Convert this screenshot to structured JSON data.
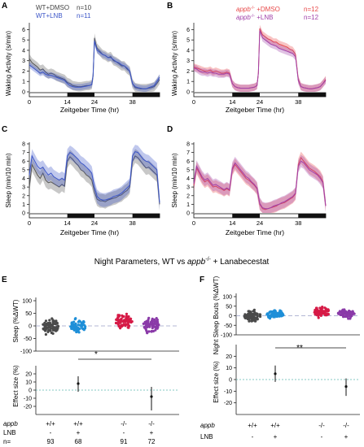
{
  "title": {
    "prefix": "Night Parameters, WT vs ",
    "gene": "appb",
    "sup": "-/-",
    "suffix": " + Lanabecestat"
  },
  "colors": {
    "wt_dmso": "#555555",
    "wt_lnb": "#3b55c8",
    "mut_dmso": "#e84848",
    "mut_lnb": "#a040a8",
    "wt_dmso_dots": "#4a4a4a",
    "wt_lnb_dots": "#1e8fd8",
    "mut_dmso_dots": "#d61a46",
    "mut_lnb_dots": "#8a3aa8"
  },
  "panels": {
    "A": {
      "letter": "A",
      "ylabel": "Waking Activity (s/min)",
      "xlabel": "Zeitgeber Time (hr)",
      "legend": [
        {
          "label": "WT+DMSO",
          "n": "n=10"
        },
        {
          "label": "WT+LNB",
          "n": "n=11"
        }
      ]
    },
    "B": {
      "letter": "B",
      "ylabel": "Waking Activity (s/min)",
      "xlabel": "Zeitgeber Time (hr)",
      "legend": [
        {
          "gene": "appb",
          "sup": "-/-",
          "label": " +DMSO",
          "n": "n=12"
        },
        {
          "gene": "appb",
          "sup": "-/-",
          "label": " +LNB",
          "n": "n=12"
        }
      ]
    },
    "C": {
      "letter": "C",
      "ylabel": "Sleep (min/10 min)",
      "xlabel": "Zeitgeber Time (hr)"
    },
    "D": {
      "letter": "D",
      "ylabel": "Sleep (min/10 min)",
      "xlabel": "Zeitgeber Time (hr)"
    },
    "E": {
      "letter": "E",
      "ylabel_top": "Sleep (%ΔWT)",
      "ylabel_bottom": "Effect size (%)",
      "sig": "*"
    },
    "F": {
      "letter": "F",
      "ylabel_top": "Night Sleep Bouts (%ΔWT)",
      "ylabel_bottom": "Effect size (%)",
      "sig": "**"
    }
  },
  "table": {
    "appb_label": "appb",
    "lnb_label": "LNB",
    "n_label": "n=",
    "genotypes": [
      "+/+",
      "+/+",
      "-/-",
      "-/-"
    ],
    "lnb": [
      "-",
      "+",
      "-",
      "+"
    ],
    "n": [
      "93",
      "68",
      "91",
      "72"
    ]
  },
  "chart_data": [
    {
      "panel": "A",
      "type": "line",
      "xlabel": "Zeitgeber Time (hr)",
      "ylabel": "Waking Activity (s/min)",
      "xlim": [
        0,
        48
      ],
      "ylim": [
        0,
        6.5
      ],
      "xticks": [
        0,
        14,
        24,
        38
      ],
      "yticks": [
        0,
        1,
        2,
        3,
        4,
        5,
        6
      ],
      "x": [
        0,
        1,
        2,
        3,
        4,
        5,
        6,
        7,
        8,
        9,
        10,
        11,
        12,
        13,
        14,
        15,
        16,
        17,
        18,
        19,
        20,
        21,
        22,
        23,
        23.5,
        24,
        24.5,
        25,
        26,
        27,
        28,
        29,
        30,
        31,
        32,
        33,
        34,
        35,
        36,
        37,
        38,
        39,
        40,
        41,
        42,
        43,
        44,
        45,
        46,
        47,
        48
      ],
      "series": [
        {
          "name": "WT+DMSO",
          "y": [
            3.2,
            2.8,
            2.6,
            2.4,
            2.1,
            2.2,
            1.9,
            1.7,
            1.8,
            1.7,
            1.5,
            1.4,
            1.3,
            1.2,
            0.9,
            0.8,
            0.6,
            0.55,
            0.5,
            0.5,
            0.55,
            0.6,
            0.6,
            0.7,
            1.5,
            5.2,
            4.6,
            4.2,
            3.9,
            3.6,
            3.5,
            3.3,
            3.4,
            3.0,
            2.9,
            2.7,
            2.5,
            2.5,
            2.2,
            2.0,
            0.8,
            0.4,
            0.35,
            0.3,
            0.3,
            0.3,
            0.35,
            0.4,
            0.5,
            0.8,
            1.2
          ],
          "err": 0.45
        },
        {
          "name": "WT+LNB",
          "y": [
            2.6,
            2.4,
            2.2,
            2.0,
            1.8,
            1.9,
            1.7,
            1.6,
            1.6,
            1.5,
            1.4,
            1.3,
            1.2,
            1.1,
            0.8,
            0.6,
            0.5,
            0.45,
            0.45,
            0.45,
            0.5,
            0.55,
            0.6,
            0.7,
            1.6,
            4.9,
            4.4,
            4.0,
            3.8,
            3.6,
            3.5,
            3.3,
            3.3,
            3.1,
            2.9,
            2.8,
            2.6,
            2.5,
            2.3,
            2.0,
            0.8,
            0.5,
            0.4,
            0.35,
            0.3,
            0.3,
            0.4,
            0.5,
            0.6,
            1.0,
            1.4
          ],
          "err": 0.3
        }
      ]
    },
    {
      "panel": "B",
      "type": "line",
      "xlabel": "Zeitgeber Time (hr)",
      "ylabel": "Waking Activity (s/min)",
      "xlim": [
        0,
        48
      ],
      "ylim": [
        0,
        6.5
      ],
      "xticks": [
        0,
        14,
        24,
        38
      ],
      "yticks": [
        0,
        1,
        2,
        3,
        4,
        5,
        6
      ],
      "x": [
        0,
        1,
        2,
        3,
        4,
        5,
        6,
        7,
        8,
        9,
        10,
        11,
        12,
        13,
        14,
        15,
        16,
        17,
        18,
        19,
        20,
        21,
        22,
        23,
        23.5,
        24,
        24.5,
        25,
        26,
        27,
        28,
        29,
        30,
        31,
        32,
        33,
        34,
        35,
        36,
        37,
        38,
        39,
        40,
        41,
        42,
        43,
        44,
        45,
        46,
        47,
        48
      ],
      "series": [
        {
          "name": "appb-/- +DMSO",
          "y": [
            2.4,
            2.3,
            2.2,
            2.1,
            2.0,
            2.0,
            2.1,
            1.9,
            2.0,
            1.9,
            1.8,
            1.8,
            1.9,
            1.8,
            0.8,
            0.5,
            0.4,
            0.35,
            0.35,
            0.35,
            0.35,
            0.4,
            0.45,
            0.6,
            1.8,
            6.1,
            5.8,
            5.5,
            5.3,
            5.1,
            5.0,
            4.8,
            4.8,
            4.6,
            4.5,
            4.4,
            4.3,
            4.1,
            4.0,
            3.6,
            1.2,
            0.5,
            0.4,
            0.35,
            0.3,
            0.3,
            0.35,
            0.4,
            0.5,
            0.8,
            1.2
          ],
          "err": 0.35
        },
        {
          "name": "appb-/- +LNB",
          "y": [
            2.3,
            2.2,
            2.0,
            1.9,
            1.9,
            1.8,
            1.9,
            1.8,
            1.8,
            1.7,
            1.7,
            1.7,
            1.8,
            1.7,
            0.8,
            0.5,
            0.4,
            0.35,
            0.35,
            0.35,
            0.35,
            0.4,
            0.45,
            0.6,
            1.8,
            5.9,
            5.6,
            5.2,
            5.0,
            4.8,
            4.6,
            4.5,
            4.4,
            4.2,
            4.1,
            4.0,
            3.9,
            3.8,
            3.7,
            3.4,
            1.1,
            0.5,
            0.4,
            0.35,
            0.3,
            0.3,
            0.35,
            0.4,
            0.5,
            0.8,
            1.1
          ],
          "err": 0.35
        }
      ]
    },
    {
      "panel": "C",
      "type": "line",
      "xlabel": "Zeitgeber Time (hr)",
      "ylabel": "Sleep (min/10 min)",
      "xlim": [
        0,
        48
      ],
      "ylim": [
        0,
        8
      ],
      "xticks": [
        0,
        14,
        24,
        38
      ],
      "yticks": [
        0,
        1,
        2,
        3,
        4,
        5,
        6,
        7,
        8
      ],
      "x": [
        0,
        1,
        2,
        3,
        4,
        5,
        6,
        7,
        8,
        9,
        10,
        11,
        12,
        13,
        14,
        15,
        16,
        17,
        18,
        19,
        20,
        21,
        22,
        23,
        24,
        25,
        26,
        27,
        28,
        29,
        30,
        31,
        32,
        33,
        34,
        35,
        36,
        37,
        38,
        39,
        40,
        41,
        42,
        43,
        44,
        45,
        46,
        47,
        48
      ],
      "series": [
        {
          "name": "WT+DMSO",
          "y": [
            3.0,
            5.6,
            5.0,
            4.4,
            4.0,
            4.6,
            3.8,
            3.5,
            3.6,
            3.4,
            3.2,
            3.0,
            3.3,
            3.1,
            6.0,
            6.5,
            6.2,
            5.8,
            5.5,
            5.0,
            4.8,
            4.4,
            4.2,
            3.8,
            2.4,
            1.6,
            1.4,
            1.4,
            1.3,
            1.5,
            1.6,
            1.7,
            1.8,
            2.0,
            2.1,
            2.4,
            2.6,
            3.0,
            6.0,
            6.6,
            6.4,
            6.0,
            5.6,
            5.2,
            5.3,
            5.0,
            4.7,
            4.4,
            1.0
          ],
          "err": 0.8
        },
        {
          "name": "WT+LNB",
          "y": [
            4.4,
            6.6,
            6.0,
            5.4,
            5.1,
            5.3,
            4.8,
            4.4,
            4.6,
            4.2,
            4.0,
            3.8,
            4.0,
            3.8,
            6.6,
            7.0,
            6.8,
            6.5,
            6.2,
            5.8,
            5.6,
            5.3,
            5.0,
            4.6,
            3.0,
            1.9,
            1.6,
            1.5,
            1.5,
            1.6,
            1.7,
            1.9,
            2.0,
            2.1,
            2.3,
            2.6,
            2.9,
            3.2,
            6.6,
            7.1,
            7.0,
            6.6,
            6.2,
            6.0,
            5.9,
            5.6,
            5.3,
            5.0,
            1.2
          ],
          "err": 0.8
        }
      ]
    },
    {
      "panel": "D",
      "type": "line",
      "xlabel": "Zeitgeber Time (hr)",
      "ylabel": "Sleep (min/10 min)",
      "xlim": [
        0,
        48
      ],
      "ylim": [
        0,
        8
      ],
      "xticks": [
        0,
        14,
        24,
        38
      ],
      "yticks": [
        0,
        1,
        2,
        3,
        4,
        5,
        6,
        7,
        8
      ],
      "x": [
        0,
        1,
        2,
        3,
        4,
        5,
        6,
        7,
        8,
        9,
        10,
        11,
        12,
        13,
        14,
        15,
        16,
        17,
        18,
        19,
        20,
        21,
        22,
        23,
        24,
        25,
        26,
        27,
        28,
        29,
        30,
        31,
        32,
        33,
        34,
        35,
        36,
        37,
        38,
        39,
        40,
        41,
        42,
        43,
        44,
        45,
        46,
        47,
        48
      ],
      "series": [
        {
          "name": "appb-/- +DMSO",
          "y": [
            3.2,
            5.2,
            4.6,
            4.0,
            3.6,
            3.8,
            3.4,
            3.0,
            3.1,
            2.9,
            2.8,
            2.6,
            2.8,
            2.6,
            5.0,
            5.6,
            5.2,
            4.8,
            4.4,
            4.0,
            3.8,
            3.5,
            3.2,
            2.8,
            1.0,
            0.5,
            0.4,
            0.5,
            0.6,
            0.7,
            0.8,
            1.0,
            1.1,
            1.2,
            1.4,
            1.6,
            1.8,
            2.2,
            5.6,
            6.4,
            6.0,
            5.6,
            5.2,
            5.0,
            4.8,
            4.5,
            4.2,
            3.6,
            0.8
          ],
          "err": 0.7
        },
        {
          "name": "appb-/- +LNB",
          "y": [
            3.4,
            5.4,
            4.8,
            4.2,
            3.8,
            4.0,
            3.6,
            3.2,
            3.3,
            3.1,
            2.9,
            2.7,
            2.9,
            2.7,
            5.2,
            5.8,
            5.4,
            5.0,
            4.6,
            4.2,
            4.0,
            3.6,
            3.3,
            2.9,
            1.1,
            0.6,
            0.5,
            0.5,
            0.6,
            0.8,
            0.9,
            1.0,
            1.2,
            1.3,
            1.5,
            1.7,
            1.9,
            2.3,
            5.4,
            6.0,
            5.8,
            5.4,
            5.0,
            4.8,
            4.6,
            4.4,
            4.0,
            3.5,
            0.8
          ],
          "err": 0.7
        }
      ]
    },
    {
      "panel": "E",
      "type": "scatter",
      "ylabel": "Sleep (%ΔWT)",
      "ylim": [
        -100,
        100
      ],
      "yticks": [
        -100,
        -50,
        0,
        50,
        100
      ],
      "groups": [
        {
          "genotype": "+/+",
          "lnb": "-",
          "n": 93,
          "center": 0,
          "spread": 30
        },
        {
          "genotype": "+/+",
          "lnb": "+",
          "n": 68,
          "center": 2,
          "spread": 25
        },
        {
          "genotype": "-/-",
          "lnb": "-",
          "n": 91,
          "center": 18,
          "spread": 30
        },
        {
          "genotype": "-/-",
          "lnb": "+",
          "n": 72,
          "center": 5,
          "spread": 28
        }
      ],
      "effect_size": {
        "ylabel": "Effect size (%)",
        "ylim": [
          -30,
          30
        ],
        "yticks": [
          -20,
          -10,
          0,
          10,
          20
        ],
        "points": [
          {
            "group": "+/+ LNB",
            "mean": 8,
            "ci": [
              -2,
              17
            ]
          },
          {
            "group": "-/- LNB",
            "mean": -8,
            "ci": [
              -25,
              4
            ]
          }
        ],
        "significance": "*"
      }
    },
    {
      "panel": "F",
      "type": "scatter",
      "ylabel": "Night Sleep Bouts (%ΔWT)",
      "ylim": [
        -100,
        100
      ],
      "yticks": [
        -100,
        -50,
        0,
        50,
        100
      ],
      "groups": [
        {
          "genotype": "+/+",
          "lnb": "-",
          "n": 93,
          "center": 0,
          "spread": 28
        },
        {
          "genotype": "+/+",
          "lnb": "+",
          "n": 68,
          "center": 5,
          "spread": 25
        },
        {
          "genotype": "-/-",
          "lnb": "-",
          "n": 91,
          "center": 20,
          "spread": 25
        },
        {
          "genotype": "-/-",
          "lnb": "+",
          "n": 72,
          "center": 12,
          "spread": 22
        }
      ],
      "effect_size": {
        "ylabel": "Effect size (%)",
        "ylim": [
          -30,
          30
        ],
        "yticks": [
          -20,
          -10,
          0,
          10,
          20
        ],
        "points": [
          {
            "group": "+/+ LNB",
            "mean": 5,
            "ci": [
              -2,
              12
            ]
          },
          {
            "group": "-/- LNB",
            "mean": -6,
            "ci": [
              -14,
              1
            ]
          }
        ],
        "significance": "**"
      }
    }
  ]
}
